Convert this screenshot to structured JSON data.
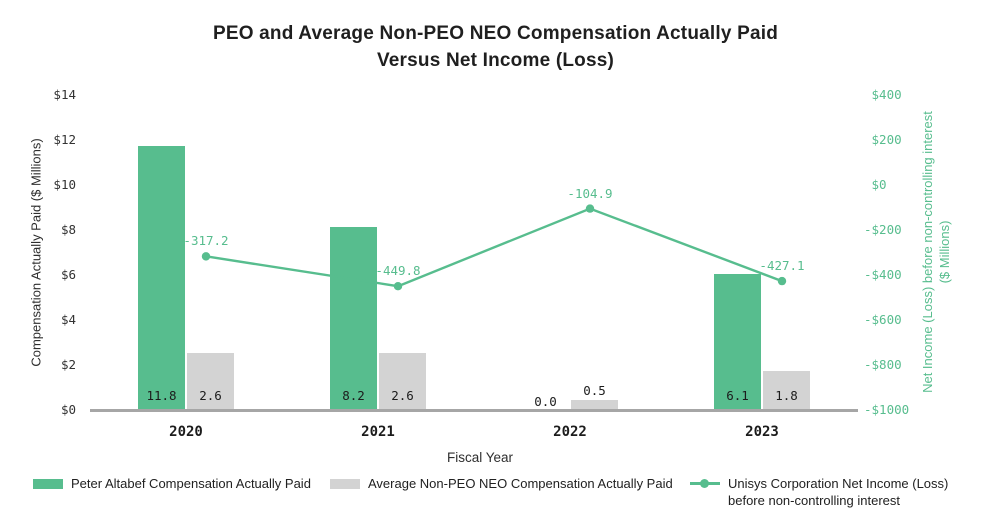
{
  "title": {
    "line1": "PEO and Average Non-PEO NEO Compensation Actually Paid",
    "line2": "Versus Net Income (Loss)"
  },
  "colors": {
    "green": "#57BD8E",
    "gray": "#D3D3D3",
    "baseline_gray": "#A6A6A6",
    "dark_text": "#1C1C1C"
  },
  "chart_data": {
    "type": "bar+line",
    "title": "PEO and Average Non-PEO NEO Compensation Actually Paid Versus Net Income (Loss)",
    "categories": [
      "2020",
      "2021",
      "2022",
      "2023"
    ],
    "series": [
      {
        "name": "Peter Altabef Compensation Actually Paid",
        "type": "bar",
        "axis": "left",
        "color": "#57BD8E",
        "values": [
          11.8,
          8.2,
          0.0,
          6.1
        ],
        "labels": [
          "11.8",
          "8.2",
          "0.0",
          "6.1"
        ]
      },
      {
        "name": "Average Non-PEO NEO Compensation Actually Paid",
        "type": "bar",
        "axis": "left",
        "color": "#D3D3D3",
        "values": [
          2.6,
          2.6,
          0.5,
          1.8
        ],
        "labels": [
          "2.6",
          "2.6",
          "0.5",
          "1.8"
        ]
      },
      {
        "name": "Unisys Corporation Net Income (Loss) before non-controlling interest",
        "type": "line",
        "axis": "right",
        "color": "#57BD8E",
        "values": [
          -317.2,
          -449.8,
          -104.9,
          -427.1
        ],
        "labels": [
          "-317.2",
          "-449.8",
          "-104.9",
          "-427.1"
        ]
      }
    ],
    "xlabel": "Fiscal Year",
    "left_axis": {
      "label": "Compensation Actually Paid ($ Millions)",
      "min": 0,
      "max": 14,
      "step": 2,
      "ticks": [
        "$0",
        "$2",
        "$4",
        "$6",
        "$8",
        "$10",
        "$12",
        "$14"
      ]
    },
    "right_axis": {
      "label_line1": "Net Income (Loss) before non-controlling interest",
      "label_line2": "($ Millions)",
      "min": -1000,
      "max": 400,
      "step": 200,
      "ticks": [
        "$400",
        "$200",
        "$0",
        "-$200",
        "-$400",
        "-$600",
        "-$800",
        "-$1000"
      ]
    },
    "grid": false,
    "legend_position": "bottom"
  },
  "legend": {
    "items": [
      {
        "label": "Peter Altabef Compensation Actually Paid",
        "swatch": "green-rect"
      },
      {
        "label": "Average Non-PEO NEO Compensation Actually Paid",
        "swatch": "gray-rect"
      },
      {
        "label_line1": "Unisys Corporation Net Income (Loss)",
        "label_line2": "before non-controlling interest",
        "swatch": "green-line-marker"
      }
    ]
  }
}
